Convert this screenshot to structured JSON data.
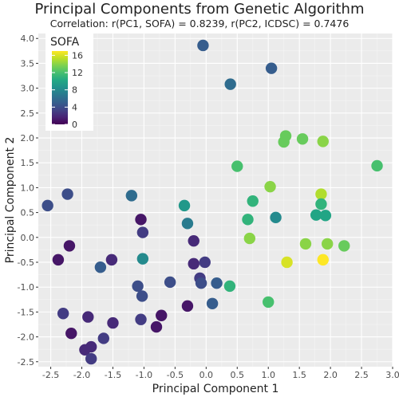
{
  "chart_data": {
    "type": "scatter",
    "title": "Principal Components from Genetic Algorithm",
    "subtitle": "Correlation: r(PC1, SOFA) = 0.8239, r(PC2, ICDSC) = 0.7476",
    "xlabel": "Principal Component 1",
    "ylabel": "Principal Component 2",
    "xlim": [
      -2.7,
      3.0
    ],
    "ylim": [
      -2.6,
      4.1
    ],
    "x_ticks": [
      "-2.5",
      "-2.0",
      "-1.5",
      "-1.0",
      "-0.5",
      "0.0",
      "0.5",
      "1.0",
      "1.5",
      "2.0",
      "2.5",
      "3.0"
    ],
    "y_ticks": [
      "-2.5",
      "-2.0",
      "-1.5",
      "-1.0",
      "-0.5",
      "0.0",
      "0.5",
      "1.0",
      "1.5",
      "2.0",
      "2.5",
      "3.0",
      "3.5",
      "4.0"
    ],
    "grid": true,
    "legend": {
      "title": "SOFA",
      "labels": [
        "16",
        "12",
        "8",
        "4",
        "0"
      ],
      "placement": "top-left inside",
      "colormap": "viridis"
    },
    "points": [
      {
        "x": -0.05,
        "y": 3.86,
        "c": 5
      },
      {
        "x": 1.05,
        "y": 3.4,
        "c": 5
      },
      {
        "x": 0.39,
        "y": 3.08,
        "c": 6
      },
      {
        "x": 1.28,
        "y": 2.04,
        "c": 13
      },
      {
        "x": 1.25,
        "y": 1.92,
        "c": 13
      },
      {
        "x": 1.55,
        "y": 1.98,
        "c": 13
      },
      {
        "x": 1.88,
        "y": 1.93,
        "c": 14
      },
      {
        "x": 0.5,
        "y": 1.43,
        "c": 12
      },
      {
        "x": 2.75,
        "y": 1.44,
        "c": 12
      },
      {
        "x": -1.2,
        "y": 0.84,
        "c": 6
      },
      {
        "x": -0.35,
        "y": 0.64,
        "c": 9
      },
      {
        "x": 1.03,
        "y": 1.02,
        "c": 14
      },
      {
        "x": 1.85,
        "y": 0.87,
        "c": 15
      },
      {
        "x": 0.75,
        "y": 0.73,
        "c": 11
      },
      {
        "x": 1.85,
        "y": 0.67,
        "c": 11
      },
      {
        "x": -2.55,
        "y": 0.64,
        "c": 4
      },
      {
        "x": -2.23,
        "y": 0.87,
        "c": 4
      },
      {
        "x": -1.05,
        "y": 0.36,
        "c": 1
      },
      {
        "x": -0.3,
        "y": 0.28,
        "c": 7
      },
      {
        "x": 0.67,
        "y": 0.36,
        "c": 11
      },
      {
        "x": 1.12,
        "y": 0.4,
        "c": 8
      },
      {
        "x": 1.77,
        "y": 0.45,
        "c": 10
      },
      {
        "x": 1.92,
        "y": 0.44,
        "c": 10
      },
      {
        "x": -1.02,
        "y": 0.1,
        "c": 3
      },
      {
        "x": -0.2,
        "y": -0.07,
        "c": 2
      },
      {
        "x": -2.2,
        "y": -0.17,
        "c": 1
      },
      {
        "x": 0.7,
        "y": -0.02,
        "c": 14
      },
      {
        "x": 1.6,
        "y": -0.13,
        "c": 14
      },
      {
        "x": 1.95,
        "y": -0.13,
        "c": 14
      },
      {
        "x": 2.22,
        "y": -0.17,
        "c": 13
      },
      {
        "x": -2.38,
        "y": -0.45,
        "c": 1
      },
      {
        "x": -1.52,
        "y": -0.45,
        "c": 2
      },
      {
        "x": -1.02,
        "y": -0.43,
        "c": 8
      },
      {
        "x": -1.7,
        "y": -0.6,
        "c": 5
      },
      {
        "x": 1.3,
        "y": -0.5,
        "c": 16
      },
      {
        "x": 1.88,
        "y": -0.45,
        "c": 17
      },
      {
        "x": -0.2,
        "y": -0.53,
        "c": 2
      },
      {
        "x": -0.02,
        "y": -0.5,
        "c": 3
      },
      {
        "x": -0.1,
        "y": -0.82,
        "c": 3
      },
      {
        "x": -0.58,
        "y": -0.9,
        "c": 4
      },
      {
        "x": 0.17,
        "y": -0.92,
        "c": 5
      },
      {
        "x": -0.08,
        "y": -0.92,
        "c": 4
      },
      {
        "x": 0.38,
        "y": -0.98,
        "c": 11
      },
      {
        "x": -1.1,
        "y": -0.98,
        "c": 4
      },
      {
        "x": -1.03,
        "y": -1.18,
        "c": 4
      },
      {
        "x": 1.0,
        "y": -1.3,
        "c": 12
      },
      {
        "x": 0.1,
        "y": -1.33,
        "c": 5
      },
      {
        "x": -0.3,
        "y": -1.38,
        "c": 1
      },
      {
        "x": -2.3,
        "y": -1.53,
        "c": 3
      },
      {
        "x": -1.9,
        "y": -1.6,
        "c": 2
      },
      {
        "x": -0.72,
        "y": -1.57,
        "c": 1
      },
      {
        "x": -1.05,
        "y": -1.65,
        "c": 3
      },
      {
        "x": -1.5,
        "y": -1.72,
        "c": 2
      },
      {
        "x": -0.8,
        "y": -1.8,
        "c": 1
      },
      {
        "x": -2.17,
        "y": -1.93,
        "c": 1
      },
      {
        "x": -1.65,
        "y": -2.03,
        "c": 3
      },
      {
        "x": -1.85,
        "y": -2.2,
        "c": 2
      },
      {
        "x": -1.95,
        "y": -2.26,
        "c": 2
      },
      {
        "x": -1.85,
        "y": -2.44,
        "c": 3
      }
    ]
  }
}
